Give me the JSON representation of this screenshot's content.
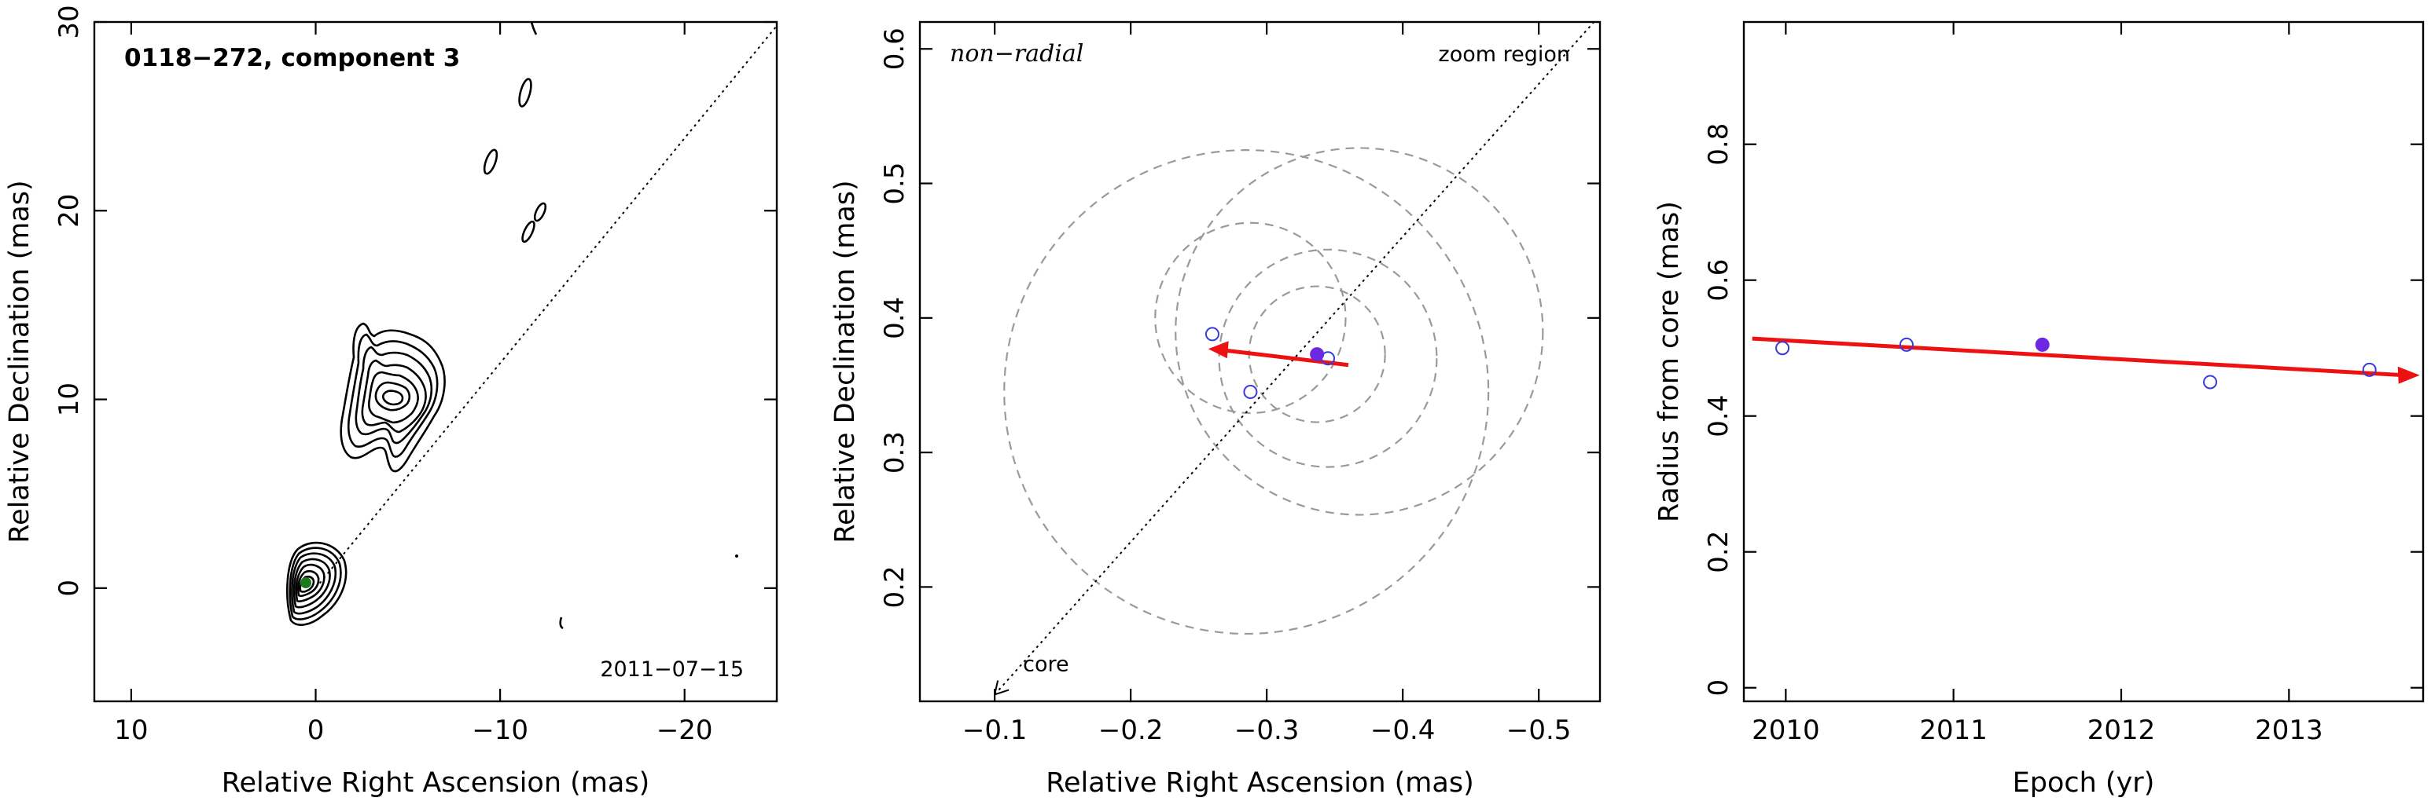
{
  "colors": {
    "open_point": "#3a3ad6",
    "filled_point": "#6d28e0",
    "arrow": "#ee1111",
    "core_marker": "#1c7a1c",
    "circles": "#9a9a9a"
  },
  "chart_data": [
    {
      "type": "contour",
      "title": "0118−272, component 3",
      "date_label": "2011−07−15",
      "xlabel": "Relative Right Ascension (mas)",
      "ylabel": "Relative Declination (mas)",
      "xlim": [
        12,
        -25
      ],
      "ylim": [
        -6,
        30
      ],
      "xticks": [
        {
          "v": 10,
          "label": "10"
        },
        {
          "v": 0,
          "label": "0"
        },
        {
          "v": -10,
          "label": "−10"
        },
        {
          "v": -20,
          "label": "−20"
        }
      ],
      "yticks": [
        {
          "v": 0,
          "label": "0"
        },
        {
          "v": 10,
          "label": "10"
        },
        {
          "v": 20,
          "label": "20"
        },
        {
          "v": 30,
          "label": "30"
        }
      ],
      "components": [
        {
          "name": "core",
          "x": -0.1,
          "y": 0.3
        },
        {
          "name": "component 3",
          "x": -4.5,
          "y": 9.5
        }
      ],
      "direction_line": [
        [
          0,
          0
        ],
        [
          -25,
          29.8
        ]
      ]
    },
    {
      "type": "scatter",
      "annotation": "non−radial",
      "zoom_label": "zoom region",
      "core_label": "core",
      "xlabel": "Relative Right Ascension (mas)",
      "ylabel": "Relative Declination (mas)",
      "xlim": [
        -0.045,
        -0.545
      ],
      "ylim": [
        0.115,
        0.62
      ],
      "xticks": [
        {
          "v": -0.1,
          "label": "−0.1"
        },
        {
          "v": -0.2,
          "label": "−0.2"
        },
        {
          "v": -0.3,
          "label": "−0.3"
        },
        {
          "v": -0.4,
          "label": "−0.4"
        },
        {
          "v": -0.5,
          "label": "−0.5"
        }
      ],
      "yticks": [
        {
          "v": 0.2,
          "label": "0.2"
        },
        {
          "v": 0.3,
          "label": "0.3"
        },
        {
          "v": 0.4,
          "label": "0.4"
        },
        {
          "v": 0.5,
          "label": "0.5"
        },
        {
          "v": 0.6,
          "label": "0.6"
        }
      ],
      "open_points": [
        {
          "x": -0.26,
          "y": 0.388
        },
        {
          "x": -0.288,
          "y": 0.345
        },
        {
          "x": -0.345,
          "y": 0.37
        }
      ],
      "filled_points": [
        {
          "x": -0.337,
          "y": 0.373
        }
      ],
      "circles": [
        {
          "cx": -0.337,
          "cy": 0.373,
          "r": 0.05
        },
        {
          "cx": -0.288,
          "cy": 0.4,
          "r": 0.07
        },
        {
          "cx": -0.345,
          "cy": 0.37,
          "r": 0.08
        },
        {
          "cx": -0.368,
          "cy": 0.39,
          "r": 0.135
        },
        {
          "cx": -0.285,
          "cy": 0.345,
          "r": 0.178
        }
      ],
      "arrow": {
        "from": [
          -0.36,
          0.365
        ],
        "to": [
          -0.257,
          0.377
        ]
      },
      "direction_line": [
        [
          -0.1,
          0.12
        ],
        [
          -0.545,
          0.625
        ]
      ]
    },
    {
      "type": "scatter",
      "xlabel": "Epoch (yr)",
      "ylabel": "Radius from core (mas)",
      "xlim": [
        2009.75,
        2013.8
      ],
      "ylim": [
        -0.02,
        0.98
      ],
      "xticks": [
        {
          "v": 2010,
          "label": "2010"
        },
        {
          "v": 2011,
          "label": "2011"
        },
        {
          "v": 2012,
          "label": "2012"
        },
        {
          "v": 2013,
          "label": "2013"
        }
      ],
      "yticks": [
        {
          "v": 0,
          "label": "0"
        },
        {
          "v": 0.2,
          "label": "0.2"
        },
        {
          "v": 0.4,
          "label": "0.4"
        },
        {
          "v": 0.6,
          "label": "0.6"
        },
        {
          "v": 0.8,
          "label": "0.8"
        }
      ],
      "open_points": [
        {
          "x": 2009.98,
          "y": 0.5
        },
        {
          "x": 2010.72,
          "y": 0.505
        },
        {
          "x": 2012.53,
          "y": 0.45
        },
        {
          "x": 2013.48,
          "y": 0.468
        }
      ],
      "filled_points": [
        {
          "x": 2011.53,
          "y": 0.505
        }
      ],
      "fit_line": {
        "from": [
          2009.8,
          0.514
        ],
        "to": [
          2013.78,
          0.46
        ]
      }
    }
  ]
}
